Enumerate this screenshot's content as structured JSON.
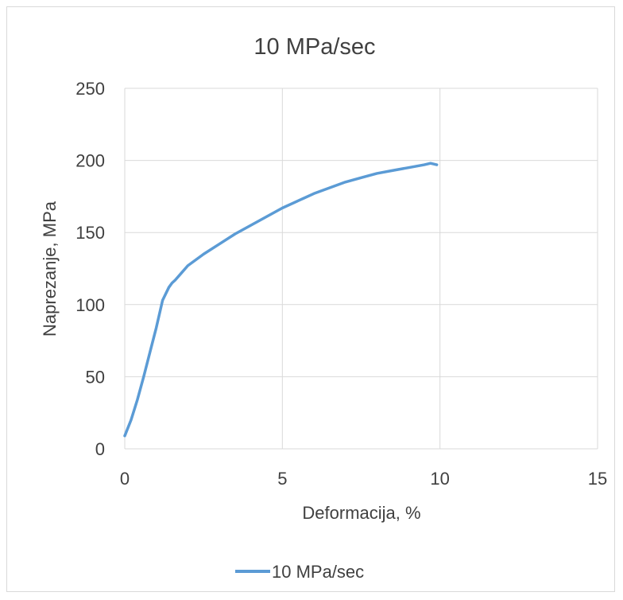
{
  "chart_data": {
    "type": "line",
    "title": "10 MPa/sec",
    "xlabel": "Deformacija, %",
    "ylabel": "Naprezanje, MPa",
    "xlim": [
      0,
      15
    ],
    "ylim": [
      0,
      250
    ],
    "xticks": [
      0,
      5,
      10,
      15
    ],
    "yticks": [
      0,
      50,
      100,
      150,
      200,
      250
    ],
    "grid": true,
    "legend": "bottom",
    "series": [
      {
        "name": "10 MPa/sec",
        "color": "#5b9bd5",
        "x": [
          0,
          0.2,
          0.4,
          0.6,
          0.8,
          1.0,
          1.2,
          1.4,
          1.5,
          1.6,
          1.8,
          2.0,
          2.5,
          3.0,
          3.5,
          4.0,
          4.5,
          5.0,
          5.5,
          6.0,
          6.5,
          7.0,
          7.5,
          8.0,
          8.5,
          9.0,
          9.5,
          9.7,
          9.9
        ],
        "y": [
          9,
          20,
          34,
          50,
          67,
          84,
          103,
          112,
          115,
          117,
          122,
          127,
          135,
          142,
          149,
          155,
          161,
          167,
          172,
          177,
          181,
          185,
          188,
          191,
          193,
          195,
          197,
          198,
          197
        ]
      }
    ]
  }
}
